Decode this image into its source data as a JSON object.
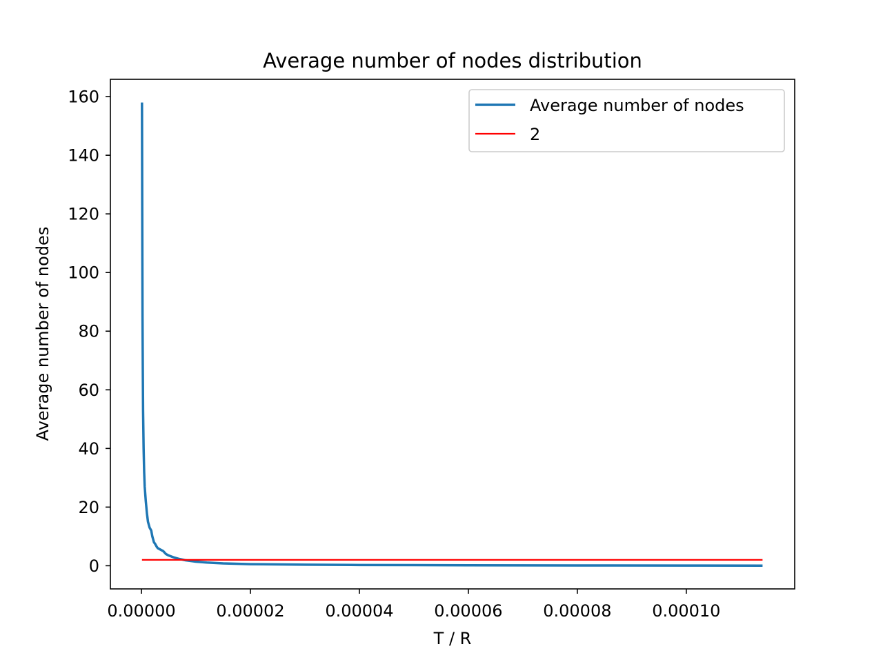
{
  "chart_data": {
    "type": "line",
    "title": "Average number of nodes distribution",
    "xlabel": "T / R",
    "ylabel": "Average number of nodes",
    "xlim": [
      -5.7e-06,
      0.0001199
    ],
    "ylim": [
      -7.9,
      165.9
    ],
    "x_ticks": [
      0.0,
      2e-05,
      4e-05,
      6e-05,
      8e-05,
      0.0001
    ],
    "x_tick_labels": [
      "0.00000",
      "0.00002",
      "0.00004",
      "0.00006",
      "0.00008",
      "0.00010"
    ],
    "y_ticks": [
      0,
      20,
      40,
      60,
      80,
      100,
      120,
      140,
      160
    ],
    "y_tick_labels": [
      "0",
      "20",
      "40",
      "60",
      "80",
      "100",
      "120",
      "140",
      "160"
    ],
    "grid": false,
    "legend_position": "top-right",
    "series": [
      {
        "name": "Average number of nodes",
        "color": "#1f77b4",
        "x": [
          1e-07,
          1.5e-07,
          2e-07,
          2.5e-07,
          3e-07,
          4e-07,
          5e-07,
          6e-07,
          8e-07,
          1e-06,
          1.2e-06,
          1.5e-06,
          1.8e-06,
          2e-06,
          2.3e-06,
          2.5e-06,
          2.8e-06,
          3e-06,
          4e-06,
          4.5e-06,
          5e-06,
          6e-06,
          7e-06,
          8e-06,
          1e-05,
          1.2e-05,
          1.5e-05,
          2e-05,
          3e-05,
          4e-05,
          5e-05,
          6e-05,
          8e-05,
          0.0001,
          0.000114
        ],
        "y": [
          158,
          120,
          85,
          68,
          53,
          40,
          32,
          27,
          22,
          18,
          15,
          13,
          12,
          10,
          8,
          7.5,
          6.5,
          6,
          5,
          4,
          3.5,
          2.8,
          2.3,
          1.9,
          1.4,
          1.1,
          0.8,
          0.55,
          0.35,
          0.25,
          0.2,
          0.15,
          0.1,
          0.06,
          0.03
        ]
      },
      {
        "name": "2",
        "color": "#ff0000",
        "x": [
          1e-07,
          0.000114
        ],
        "y": [
          2,
          2
        ]
      }
    ]
  }
}
